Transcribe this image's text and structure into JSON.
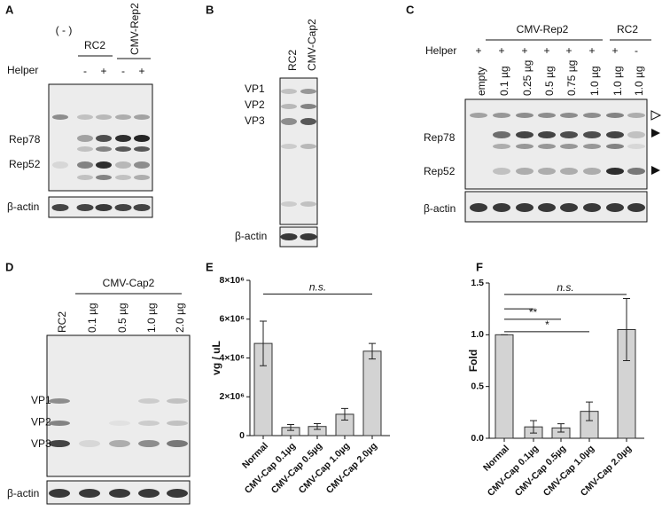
{
  "panels": {
    "a": {
      "label": "A",
      "blank": "( - )",
      "group1": "RC2",
      "group2": "CMV-Rep2",
      "helper": "Helper",
      "helper_signs": [
        "-",
        "+",
        "-",
        "+"
      ],
      "bands": [
        "Rep78",
        "Rep52"
      ],
      "loading": "β-actin"
    },
    "b": {
      "label": "B",
      "lanes": [
        "RC2",
        "CMV-Cap2"
      ],
      "bands": [
        "VP1",
        "VP2",
        "VP3"
      ],
      "loading": "β-actin"
    },
    "c": {
      "label": "C",
      "group1": "CMV-Rep2",
      "group2": "RC2",
      "helper": "Helper",
      "helper_signs": [
        "+",
        "+",
        "+",
        "+",
        "+",
        "+",
        "+",
        "-"
      ],
      "lanes": [
        "empty",
        "0.1 µg",
        "0.25 µg",
        "0.5 µg",
        "0.75 µg",
        "1.0 µg",
        "1.0 µg",
        "1.0 µg"
      ],
      "bands": [
        "Rep78",
        "Rep52"
      ],
      "loading": "β-actin"
    },
    "d": {
      "label": "D",
      "group": "CMV-Cap2",
      "lanes": [
        "RC2",
        "0.1 µg",
        "0.5 µg",
        "1.0 µg",
        "2.0 µg"
      ],
      "bands": [
        "VP1",
        "VP2",
        "VP3"
      ],
      "loading": "β-actin"
    }
  },
  "chart_data": [
    {
      "type": "bar",
      "label": "E",
      "y_label": "vg / uL",
      "categories": [
        "Normal",
        "CMV-Cap 0.1µg",
        "CMV-Cap 0.5µg",
        "CMV-Cap 1.0µg",
        "CMV-Cap 2.0µg"
      ],
      "values": [
        4750000,
        420000,
        470000,
        1100000,
        4350000
      ],
      "errors": [
        1150000,
        150000,
        150000,
        300000,
        400000
      ],
      "color": "#d3d3d3",
      "ylim": [
        0,
        8000000
      ],
      "yticks": [
        0,
        {
          "value": 2000000,
          "label": "2×10⁶"
        },
        {
          "value": 4000000,
          "label": "4×10⁶"
        },
        {
          "value": 6000000,
          "label": "6×10⁶"
        },
        {
          "value": 8000000,
          "label": "8×10⁶"
        }
      ],
      "annotations": [
        {
          "text": "n.s.",
          "from": 0,
          "to": 4,
          "y": 7300000
        }
      ]
    },
    {
      "type": "bar",
      "label": "F",
      "y_label": "Fold",
      "categories": [
        "Normal",
        "CMV-Cap 0.1µg",
        "CMV-Cap 0.5µg",
        "CMV-Cap 1.0µg",
        "CMV-Cap 2.0µg"
      ],
      "values": [
        1.0,
        0.11,
        0.1,
        0.26,
        1.05
      ],
      "errors": [
        0,
        0.06,
        0.04,
        0.09,
        0.3
      ],
      "color": "#d3d3d3",
      "ylim": [
        0,
        1.5
      ],
      "yticks": [
        {
          "value": 0,
          "label": "0.0"
        },
        0.5,
        {
          "value": 1,
          "label": "1.0"
        },
        1.5
      ],
      "annotations": [
        {
          "text": "n.s.",
          "from": 0,
          "to": 4,
          "y": 1.39
        },
        {
          "from": 0,
          "to": 1,
          "y": 1.25
        },
        {
          "text": "**",
          "from": 0,
          "to": 2,
          "y": 1.15
        },
        {
          "text": "*",
          "from": 0,
          "to": 3,
          "y": 1.03
        }
      ]
    }
  ]
}
